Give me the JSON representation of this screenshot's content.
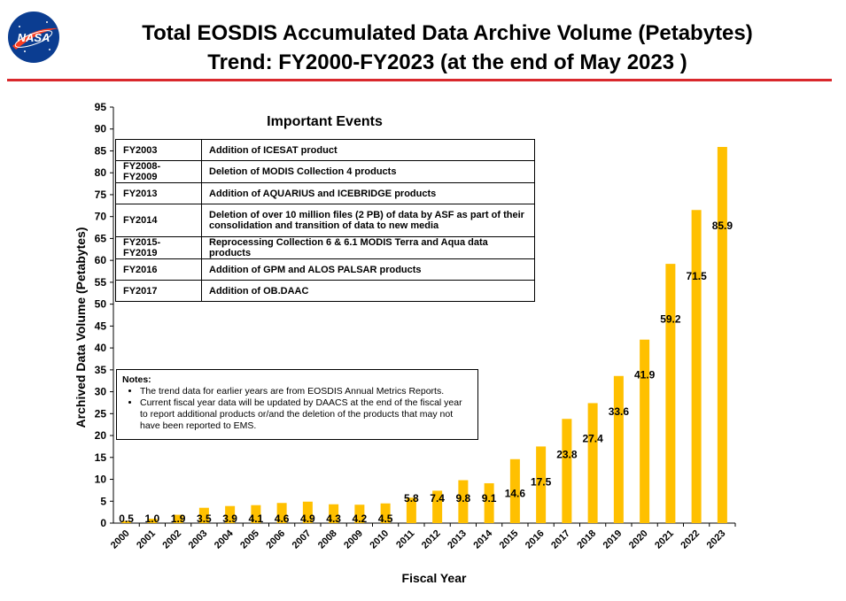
{
  "header": {
    "title_line1": "Total EOSDIS Accumulated Data Archive Volume (Petabytes)",
    "title_line2": "Trend: FY2000-FY2023 (at the end of May 2023 )",
    "logo_text": "NASA"
  },
  "events": {
    "title": "Important Events",
    "rows": [
      {
        "year": "FY2003",
        "text": "Addition of ICESAT product"
      },
      {
        "year": "FY2008-FY2009",
        "text": "Deletion of  MODIS Collection 4 products"
      },
      {
        "year": "FY2013",
        "text": "Addition of AQUARIUS and ICEBRIDGE products"
      },
      {
        "year": "FY2014",
        "text": "Deletion of over 10 million files (2 PB) of data by ASF as part of their consolidation and transition of data to new media"
      },
      {
        "year": "FY2015-FY2019",
        "text": "Reprocessing  Collection 6 & 6.1 MODIS Terra and Aqua data products"
      },
      {
        "year": "FY2016",
        "text": "Addition of GPM and ALOS PALSAR products"
      },
      {
        "year": "FY2017",
        "text": "Addition of OB.DAAC"
      }
    ]
  },
  "notes": {
    "heading": "Notes:",
    "items": [
      "The trend data for earlier years are from EOSDIS Annual Metrics Reports.",
      "Current fiscal year data will be updated by DAACS at the end of the fiscal year to report additional products or/and the deletion of the products that may not have been reported to EMS."
    ]
  },
  "colors": {
    "bar": "#ffc000",
    "title_rule": "#d9282c",
    "logo_blue": "#0b3d91",
    "logo_red": "#fc3d21"
  },
  "chart_data": {
    "type": "bar",
    "categories": [
      "2000",
      "2001",
      "2002",
      "2003",
      "2004",
      "2005",
      "2006",
      "2007",
      "2008",
      "2009",
      "2010",
      "2011",
      "2012",
      "2013",
      "2014",
      "2015",
      "2016",
      "2017",
      "2018",
      "2019",
      "2020",
      "2021",
      "2022",
      "2023"
    ],
    "values": [
      0.5,
      1.0,
      1.9,
      3.5,
      3.9,
      4.1,
      4.6,
      4.9,
      4.3,
      4.2,
      4.5,
      5.8,
      7.4,
      9.8,
      9.1,
      14.6,
      17.5,
      23.8,
      27.4,
      33.6,
      41.9,
      59.2,
      71.5,
      85.9
    ],
    "labels": [
      "0.5",
      "1.0",
      "1.9",
      "3.5",
      "3.9",
      "4.1",
      "4.6",
      "4.9",
      "4.3",
      "4.2",
      "4.5",
      "5.8",
      "7.4",
      "9.8",
      "9.1",
      "14.6",
      "17.5",
      "23.8",
      "27.4",
      "33.6",
      "41.9",
      "59.2",
      "71.5",
      "85.9"
    ],
    "xlabel": "Fiscal Year",
    "ylabel": "Archived Data Volume (Petabytes)",
    "ylim": [
      0,
      95
    ],
    "yticks": [
      0,
      5,
      10,
      15,
      20,
      25,
      30,
      35,
      40,
      45,
      50,
      55,
      60,
      65,
      70,
      75,
      80,
      85,
      90,
      95
    ],
    "grid": false,
    "legend": "none"
  }
}
